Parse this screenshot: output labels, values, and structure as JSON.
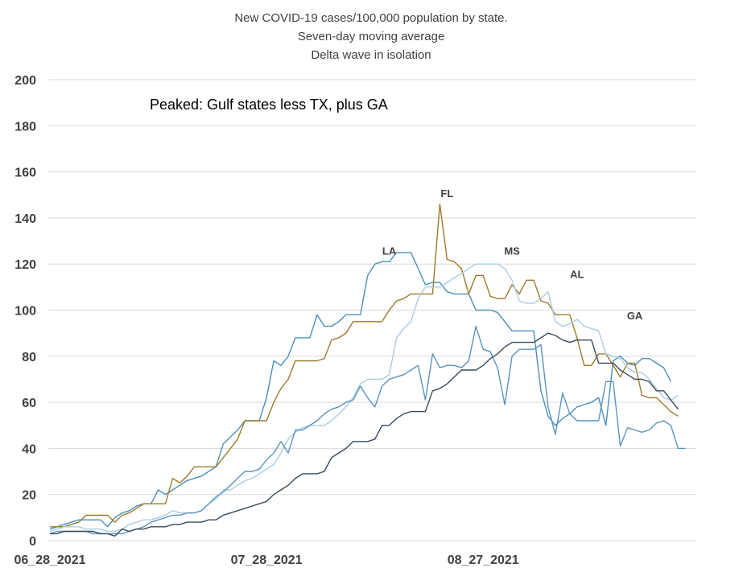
{
  "chart_data": {
    "type": "line",
    "title": [
      "New COVID-19 cases/100,000 population by state.",
      "Seven-day moving average",
      "Delta wave in isolation"
    ],
    "annotation": "Peaked:  Gulf states less TX, plus GA",
    "xlabel": "",
    "ylabel": "",
    "ylim": [
      0,
      200
    ],
    "yticks": [
      "0",
      "20",
      "40",
      "60",
      "80",
      "100",
      "120",
      "140",
      "160",
      "180",
      "200"
    ],
    "xticks": [
      {
        "index": 0,
        "label": "06_28_2021"
      },
      {
        "index": 30,
        "label": "07_28_2021"
      },
      {
        "index": 60,
        "label": "08_27_2021"
      }
    ],
    "x_start": "06_28_2021",
    "grid": true,
    "legend": "none",
    "series": [
      {
        "name": "LA",
        "color": "#4a8fb8",
        "label_day": 47,
        "label_value": 124,
        "values": [
          5,
          6,
          7,
          8,
          9,
          9,
          9,
          9,
          6,
          10,
          12,
          13,
          15,
          16,
          16,
          22,
          20,
          22,
          24,
          26,
          27,
          28,
          30,
          32,
          42,
          45,
          48,
          52,
          52,
          52,
          62,
          78,
          76,
          80,
          88,
          88,
          88,
          98,
          93,
          93,
          95,
          98,
          98,
          98,
          115,
          120,
          121,
          121,
          125,
          125,
          125,
          118,
          111,
          112,
          112,
          108,
          107,
          107,
          107,
          100,
          100,
          100,
          99,
          95,
          91,
          91,
          91,
          91,
          65,
          54,
          50,
          53,
          55,
          58,
          59,
          60,
          62,
          50,
          78,
          80,
          77,
          76,
          79,
          79,
          77,
          75,
          69
        ]
      },
      {
        "name": "FL",
        "color": "#9c7b2a",
        "label_day": 55,
        "label_value": 149,
        "values": [
          6,
          6,
          6,
          7,
          8,
          11,
          11,
          11,
          11,
          8,
          11,
          12,
          14,
          16,
          16,
          16,
          16,
          27,
          25,
          28,
          32,
          32,
          32,
          32,
          36,
          40,
          44,
          52,
          52,
          52,
          52,
          60,
          66,
          70,
          78,
          78,
          78,
          78,
          79,
          87,
          88,
          90,
          95,
          95,
          95,
          95,
          95,
          100,
          104,
          105,
          107,
          107,
          107,
          107,
          146,
          122,
          121,
          118,
          107,
          115,
          115,
          106,
          105,
          105,
          111,
          107,
          113,
          113,
          104,
          103,
          98,
          98,
          98,
          88,
          76,
          76,
          81,
          81,
          76,
          71,
          77,
          77,
          63,
          62,
          62,
          59,
          56,
          54
        ]
      },
      {
        "name": "MS",
        "color": "#a8cde6",
        "label_day": 64,
        "label_value": 124,
        "values": [
          4,
          5,
          6,
          6,
          6,
          5,
          5,
          5,
          4,
          4,
          5,
          7,
          8,
          9,
          9,
          10,
          11,
          13,
          12,
          12,
          12,
          13,
          16,
          18,
          22,
          22,
          24,
          26,
          27,
          29,
          31,
          33,
          38,
          44,
          47,
          49,
          50,
          50,
          50,
          52,
          55,
          58,
          62,
          68,
          70,
          70,
          70,
          72,
          88,
          92,
          95,
          105,
          110,
          110,
          110,
          112,
          114,
          116,
          118,
          120,
          120,
          120,
          120,
          118,
          113,
          104,
          103,
          103,
          105,
          108,
          95,
          93,
          94,
          96,
          93,
          92,
          91,
          81,
          80,
          79,
          75,
          73,
          73,
          70,
          66,
          62,
          61,
          63
        ]
      },
      {
        "name": "AL",
        "color": "#5a93bd",
        "label_day": 73,
        "label_value": 114,
        "values": [
          3,
          4,
          4,
          4,
          4,
          4,
          3,
          3,
          3,
          3,
          3,
          4,
          5,
          6,
          8,
          9,
          10,
          11,
          11,
          12,
          12,
          13,
          16,
          19,
          21,
          24,
          27,
          30,
          30,
          31,
          35,
          38,
          43,
          38,
          48,
          48,
          50,
          52,
          55,
          57,
          58,
          60,
          61,
          67,
          62,
          58,
          67,
          70,
          71,
          72,
          74,
          76,
          61,
          81,
          75,
          76,
          76,
          75,
          78,
          93,
          83,
          82,
          75,
          59,
          80,
          83,
          83,
          83,
          85,
          58,
          46,
          64,
          55,
          52,
          52,
          52,
          52,
          69,
          69,
          41,
          49,
          48,
          47,
          48,
          51,
          52,
          50,
          40,
          40
        ]
      },
      {
        "name": "GA",
        "color": "#3a4a5a",
        "label_day": 81,
        "label_value": 96,
        "values": [
          3,
          3,
          4,
          4,
          4,
          4,
          4,
          3,
          3,
          2,
          5,
          4,
          5,
          5,
          6,
          6,
          6,
          7,
          7,
          8,
          8,
          8,
          9,
          9,
          11,
          12,
          13,
          14,
          15,
          16,
          17,
          20,
          22,
          24,
          27,
          29,
          29,
          29,
          30,
          36,
          38,
          40,
          43,
          43,
          43,
          44,
          50,
          50,
          53,
          55,
          56,
          56,
          56,
          65,
          66,
          68,
          71,
          74,
          74,
          74,
          76,
          79,
          81,
          84,
          86,
          86,
          86,
          86,
          88,
          90,
          89,
          87,
          86,
          87,
          87,
          87,
          77,
          77,
          77,
          74,
          72,
          70,
          70,
          69,
          65,
          65,
          61,
          57
        ]
      }
    ]
  }
}
